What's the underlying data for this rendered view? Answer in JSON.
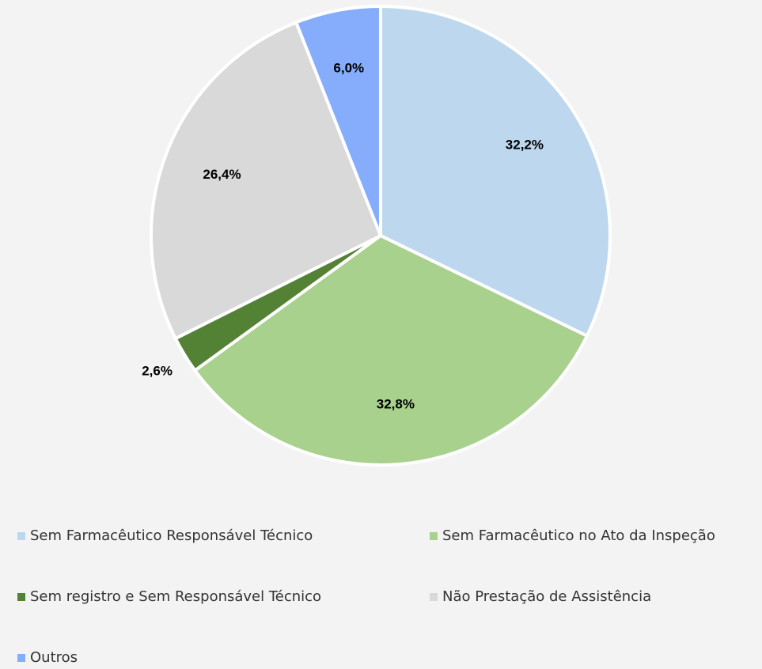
{
  "chart_data": {
    "type": "pie",
    "categories": [
      "Sem Farmacêutico Responsável Técnico",
      "Sem Farmacêutico no Ato da Inspeção",
      "Sem registro e Sem Responsável Técnico",
      "Não Prestação de Assistência",
      "Outros"
    ],
    "values": [
      32.2,
      32.8,
      2.6,
      26.4,
      6.0
    ],
    "value_labels": [
      "32,2%",
      "32,8%",
      "2,6%",
      "26,4%",
      "6,0%"
    ],
    "colors": [
      "#bdd7ee",
      "#a9d18e",
      "#548235",
      "#d9d9d9",
      "#85adfb"
    ],
    "legend": "bottom"
  }
}
